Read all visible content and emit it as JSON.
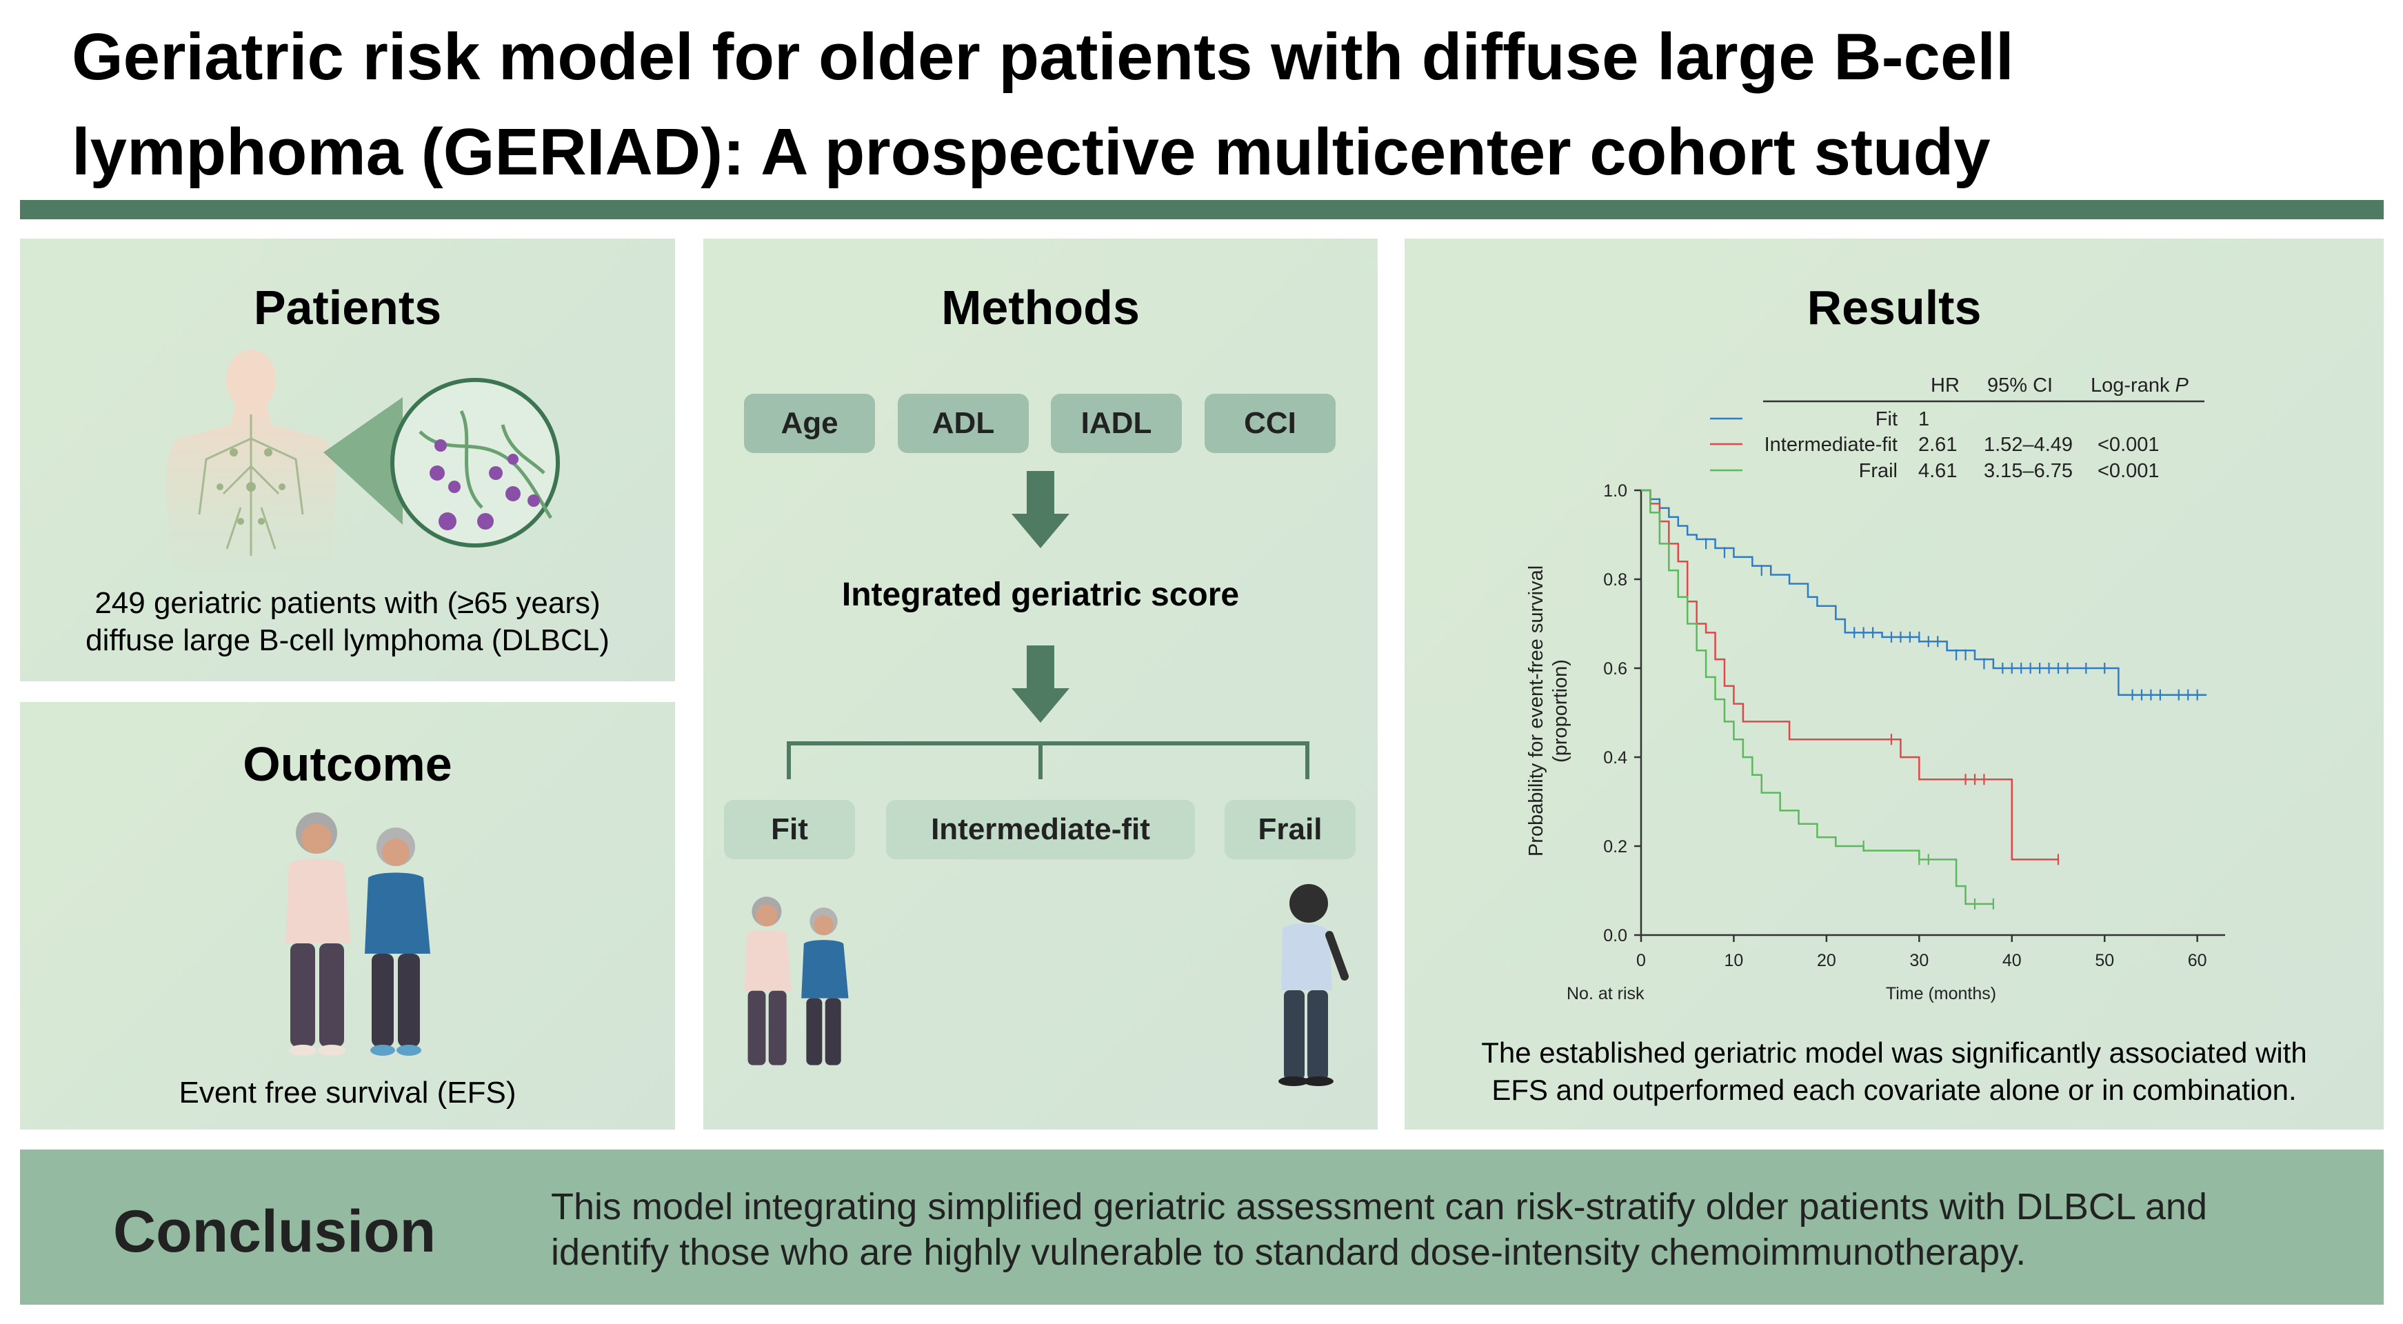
{
  "title": "Geriatric risk model for older patients with diffuse large B-cell lymphoma (GERIAD): A prospective multicenter cohort study",
  "colors": {
    "accent_dark": "#4e7b62",
    "panel_bg": "#d6e8d4",
    "pill_bg": "#9ec0ac",
    "conclusion_bg": "#94bba1",
    "fit": "#2f7cc4",
    "intermediate": "#e04848",
    "frail": "#5cb85c"
  },
  "patients": {
    "heading": "Patients",
    "figure_icon": "lymphatic-body-icon",
    "line1": "249 geriatric patients with (≥65 years)",
    "line2": "diffuse large B-cell lymphoma (DLBCL)"
  },
  "outcome": {
    "heading": "Outcome",
    "figure_icon": "walking-couple-icon",
    "caption": "Event free survival (EFS)"
  },
  "methods": {
    "heading": "Methods",
    "inputs": [
      "Age",
      "ADL",
      "IADL",
      "CCI"
    ],
    "score": "Integrated geriatric score",
    "groups": [
      "Fit",
      "Intermediate-fit",
      "Frail"
    ]
  },
  "results": {
    "heading": "Results",
    "table": {
      "headers": [
        "HR",
        "95% CI",
        "Log-rank"
      ],
      "header_p": "P",
      "rows": [
        {
          "label": "Fit",
          "hr": "1",
          "ci": "",
          "p": ""
        },
        {
          "label": "Intermediate-fit",
          "hr": "2.61",
          "ci": "1.52–4.49",
          "p": "<0.001"
        },
        {
          "label": "Frail",
          "hr": "4.61",
          "ci": "3.15–6.75",
          "p": "<0.001"
        }
      ]
    },
    "summary_line1": "The established geriatric model was significantly associated with",
    "summary_line2": "EFS and outperformed each covariate alone or in combination."
  },
  "chart_data": {
    "type": "line",
    "title": "",
    "xlabel": "Time (months)",
    "ylabel_line1": "Probability for event-free survival",
    "ylabel_line2": "(proportion)",
    "at_risk_label": "No. at risk",
    "xlim": [
      0,
      63
    ],
    "ylim": [
      0,
      1.0
    ],
    "xticks": [
      0,
      10,
      20,
      30,
      40,
      50,
      60
    ],
    "yticks": [
      0.0,
      0.2,
      0.4,
      0.6,
      0.8,
      1.0
    ],
    "ytick_labels": [
      "0.0",
      "0.2",
      "0.4",
      "0.6",
      "0.8",
      "1.0"
    ],
    "series": [
      {
        "name": "Fit",
        "color": "#2f7cc4",
        "steps": [
          [
            0,
            1.0
          ],
          [
            1,
            0.98
          ],
          [
            2,
            0.96
          ],
          [
            3,
            0.94
          ],
          [
            4,
            0.92
          ],
          [
            5,
            0.9
          ],
          [
            6,
            0.89
          ],
          [
            8,
            0.87
          ],
          [
            10,
            0.85
          ],
          [
            12,
            0.83
          ],
          [
            14,
            0.81
          ],
          [
            16,
            0.79
          ],
          [
            18,
            0.76
          ],
          [
            19,
            0.74
          ],
          [
            21,
            0.71
          ],
          [
            22,
            0.68
          ],
          [
            26,
            0.67
          ],
          [
            30,
            0.66
          ],
          [
            33,
            0.64
          ],
          [
            36,
            0.62
          ],
          [
            38,
            0.6
          ],
          [
            51.5,
            0.54
          ],
          [
            61,
            0.54
          ]
        ],
        "censored": [
          [
            7,
            0.88
          ],
          [
            9,
            0.86
          ],
          [
            13,
            0.82
          ],
          [
            23,
            0.68
          ],
          [
            24,
            0.68
          ],
          [
            25,
            0.68
          ],
          [
            27,
            0.67
          ],
          [
            28,
            0.67
          ],
          [
            29,
            0.67
          ],
          [
            30,
            0.67
          ],
          [
            31,
            0.66
          ],
          [
            32,
            0.66
          ],
          [
            34,
            0.63
          ],
          [
            35,
            0.63
          ],
          [
            37,
            0.61
          ],
          [
            39,
            0.6
          ],
          [
            40,
            0.6
          ],
          [
            41,
            0.6
          ],
          [
            42,
            0.6
          ],
          [
            43,
            0.6
          ],
          [
            44,
            0.6
          ],
          [
            45,
            0.6
          ],
          [
            46,
            0.6
          ],
          [
            48,
            0.6
          ],
          [
            50,
            0.6
          ],
          [
            53,
            0.54
          ],
          [
            54,
            0.54
          ],
          [
            55,
            0.54
          ],
          [
            56,
            0.54
          ],
          [
            58,
            0.54
          ],
          [
            59,
            0.54
          ],
          [
            60,
            0.54
          ]
        ]
      },
      {
        "name": "Intermediate-fit",
        "color": "#e04848",
        "steps": [
          [
            0,
            1.0
          ],
          [
            1,
            0.97
          ],
          [
            2,
            0.93
          ],
          [
            3,
            0.88
          ],
          [
            4,
            0.84
          ],
          [
            5,
            0.75
          ],
          [
            6,
            0.7
          ],
          [
            7,
            0.68
          ],
          [
            8,
            0.62
          ],
          [
            9,
            0.56
          ],
          [
            10,
            0.52
          ],
          [
            11,
            0.48
          ],
          [
            16,
            0.44
          ],
          [
            28,
            0.4
          ],
          [
            30,
            0.35
          ],
          [
            40,
            0.17
          ],
          [
            45,
            0.17
          ]
        ],
        "censored": [
          [
            27,
            0.44
          ],
          [
            35,
            0.35
          ],
          [
            36,
            0.35
          ],
          [
            37,
            0.35
          ],
          [
            45,
            0.17
          ]
        ]
      },
      {
        "name": "Frail",
        "color": "#5cb85c",
        "steps": [
          [
            0,
            1.0
          ],
          [
            1,
            0.95
          ],
          [
            2,
            0.88
          ],
          [
            3,
            0.82
          ],
          [
            4,
            0.76
          ],
          [
            5,
            0.7
          ],
          [
            6,
            0.64
          ],
          [
            7,
            0.58
          ],
          [
            8,
            0.53
          ],
          [
            9,
            0.48
          ],
          [
            10,
            0.44
          ],
          [
            11,
            0.4
          ],
          [
            12,
            0.36
          ],
          [
            13,
            0.32
          ],
          [
            15,
            0.28
          ],
          [
            17,
            0.25
          ],
          [
            19,
            0.22
          ],
          [
            21,
            0.2
          ],
          [
            24,
            0.19
          ],
          [
            30,
            0.17
          ],
          [
            34,
            0.11
          ],
          [
            35,
            0.07
          ],
          [
            38,
            0.07
          ]
        ],
        "censored": [
          [
            24,
            0.2
          ],
          [
            30,
            0.17
          ],
          [
            31,
            0.17
          ],
          [
            36,
            0.07
          ],
          [
            38,
            0.07
          ]
        ]
      }
    ]
  },
  "conclusion": {
    "label": "Conclusion",
    "line1": "This model integrating simplified geriatric assessment can risk-stratify older patients with DLBCL and",
    "line2": "identify those who are highly vulnerable to standard dose-intensity chemoimmunotherapy."
  }
}
